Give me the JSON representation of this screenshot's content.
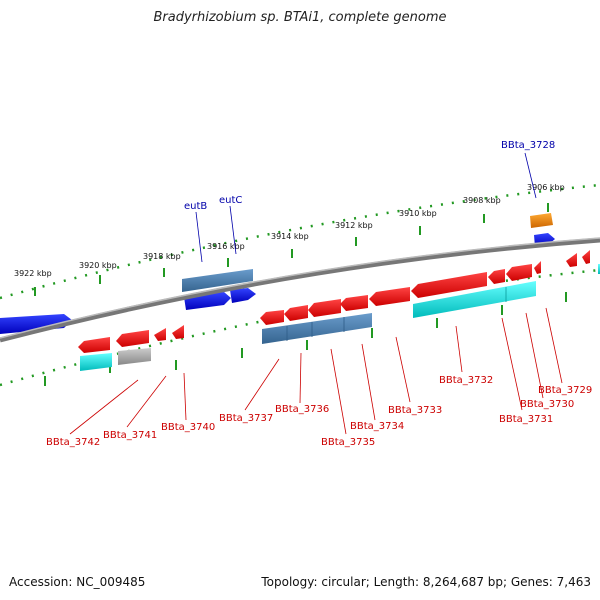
{
  "title": "Bradyrhizobium sp. BTAi1, complete genome",
  "footer": {
    "accession": "Accession: NC_009485",
    "stats": "Topology: circular; Length: 8,264,687 bp; Genes: 7,463"
  },
  "scale_labels": [
    "3922 kbp",
    "3920 kbp",
    "3918 kbp",
    "3916 kbp",
    "3914 kbp",
    "3912 kbp",
    "3910 kbp",
    "3908 kbp",
    "3906 kbp"
  ],
  "gene_labels_top": [
    "eutB",
    "eutC",
    "BBta_3728"
  ],
  "gene_labels_bottom": [
    "BBta_3742",
    "BBta_3741",
    "BBta_3740",
    "BBta_3737",
    "BBta_3736",
    "BBta_3735",
    "BBta_3734",
    "BBta_3733",
    "BBta_3732",
    "BBta_3731",
    "BBta_3730",
    "BBta_3729"
  ],
  "colors": {
    "cds": "#ee1111",
    "gene": "#1111ee",
    "rrna_like": "#4a7fb0",
    "feature_cyan": "#11dddd",
    "feature_grey": "#aaaaaa",
    "feature_orange": "#ee8800",
    "ticks": "#229922",
    "top_label": "#0000aa",
    "bottom_label": "#cc0000",
    "backbone": "#888888"
  }
}
